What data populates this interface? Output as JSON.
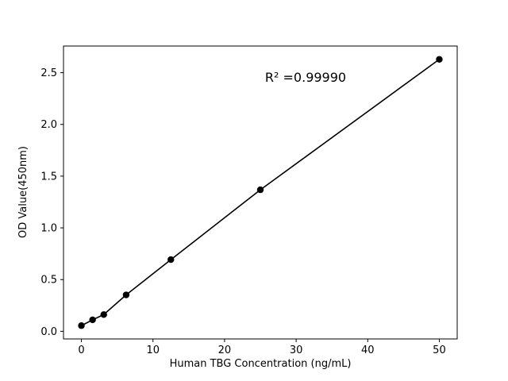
{
  "figure": {
    "background": "#ffffff"
  },
  "chart_data": {
    "type": "scatter",
    "title": "",
    "xlabel": "Human TBG Concentration (ng/mL)",
    "ylabel": "OD Value(450nm)",
    "annotation": "R² =0.99990",
    "x": [
      0,
      1.5625,
      3.125,
      6.25,
      12.5,
      25,
      50
    ],
    "y": [
      0.055,
      0.111,
      0.162,
      0.352,
      0.693,
      1.368,
      2.629
    ],
    "xlim": [
      -2.5,
      52.5
    ],
    "ylim": [
      -0.0737,
      2.7577
    ],
    "xticks": [
      0,
      10,
      20,
      30,
      40,
      50
    ],
    "yticks": [
      0.0,
      0.5,
      1.0,
      1.5,
      2.0,
      2.5
    ],
    "line_color": "#000000",
    "marker_color": "#000000",
    "axis_color": "#000000",
    "grid": false,
    "legend": null,
    "marker_style": "filled-circle",
    "line_style": "solid"
  }
}
